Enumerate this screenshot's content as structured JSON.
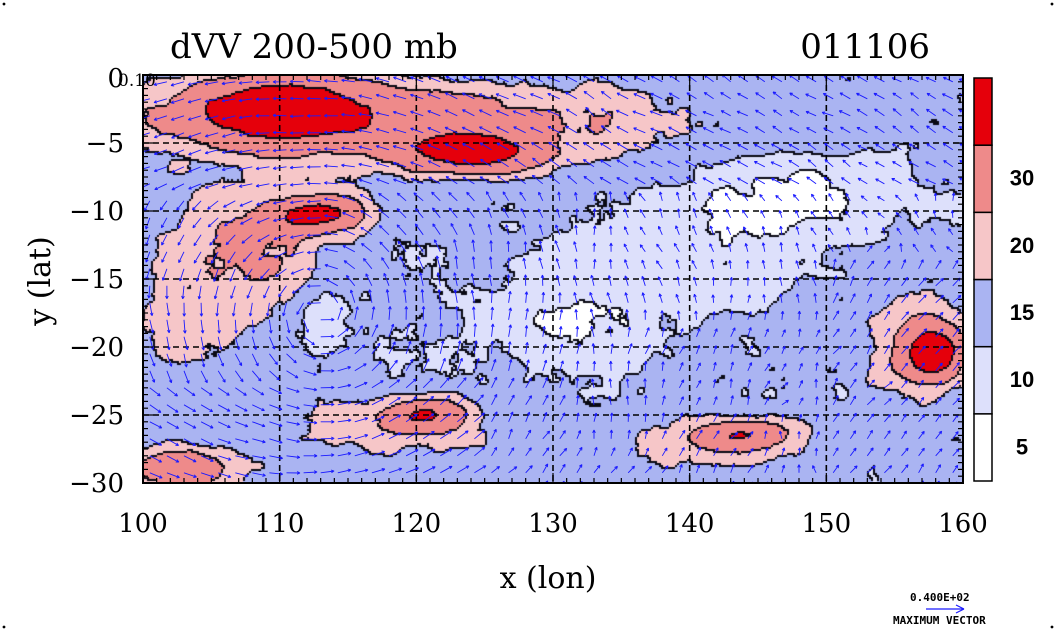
{
  "chart_data": {
    "type": "heatmap",
    "title": "dVV 200-500 mb",
    "date_label": "011106",
    "xlabel": "x (lon)",
    "ylabel": "y (lat)",
    "xlim": [
      100,
      160
    ],
    "ylim": [
      -30,
      0
    ],
    "x_ticks": [
      100,
      110,
      120,
      130,
      140,
      150,
      160
    ],
    "y_ticks": [
      0,
      -5,
      -10,
      -15,
      -20,
      -25,
      -30
    ],
    "x_tick_labels": [
      "100",
      "110",
      "120",
      "130",
      "140",
      "150",
      "160"
    ],
    "y_tick_labels": [
      "0",
      "−5",
      "−10",
      "−15",
      "−20",
      "−25",
      "−30"
    ],
    "corner_label": "0.10",
    "grid": true,
    "colorbar": {
      "levels": [
        0,
        5,
        10,
        15,
        20,
        30,
        40
      ],
      "labels": [
        "5",
        "10",
        "15",
        "20",
        "30"
      ],
      "colors": [
        "#ffffff",
        "#dde0fb",
        "#aab4f2",
        "#f6c6c8",
        "#ee8a8a",
        "#e5000b"
      ]
    },
    "field_features": [
      {
        "name": "north-band",
        "lon": 118,
        "lat": -3.5,
        "value": 24
      },
      {
        "name": "north-core",
        "lon": 110,
        "lat": -2.5,
        "value": 34
      },
      {
        "name": "north-core-east",
        "lon": 124,
        "lat": -5.8,
        "value": 31
      },
      {
        "name": "west-jet",
        "lon": 108,
        "lat": -13,
        "value": 21
      },
      {
        "name": "jet-core",
        "lon": 113,
        "lat": -10.3,
        "value": 31
      },
      {
        "name": "west-region",
        "lon": 103,
        "lat": -18,
        "value": 17
      },
      {
        "name": "vortex",
        "lon": 113,
        "lat": -17.5,
        "value": 6
      },
      {
        "name": "south-west",
        "lon": 118,
        "lat": -26,
        "value": 19
      },
      {
        "name": "south-west-core",
        "lon": 121,
        "lat": -25,
        "value": 25
      },
      {
        "name": "south-east",
        "lon": 142,
        "lat": -27,
        "value": 19
      },
      {
        "name": "south-east-core",
        "lon": 144,
        "lat": -26.5,
        "value": 24
      },
      {
        "name": "east-max",
        "lon": 157,
        "lat": -20,
        "value": 22
      },
      {
        "name": "east-max-core",
        "lon": 158,
        "lat": -20.5,
        "value": 32
      },
      {
        "name": "north-east-low",
        "lon": 148,
        "lat": -9,
        "value": 3
      },
      {
        "name": "centre-low",
        "lon": 132,
        "lat": -18,
        "value": 4
      },
      {
        "name": "centre-east",
        "lon": 141,
        "lat": -13,
        "value": 6
      },
      {
        "name": "south-west-corner",
        "lon": 103,
        "lat": -29,
        "value": 28
      }
    ],
    "background_value": 11,
    "vector_key": {
      "value_label": "0.400E+02",
      "caption": "MAXIMUM VECTOR",
      "magnitude": 40
    },
    "arrow_color": "#1a1aff"
  }
}
